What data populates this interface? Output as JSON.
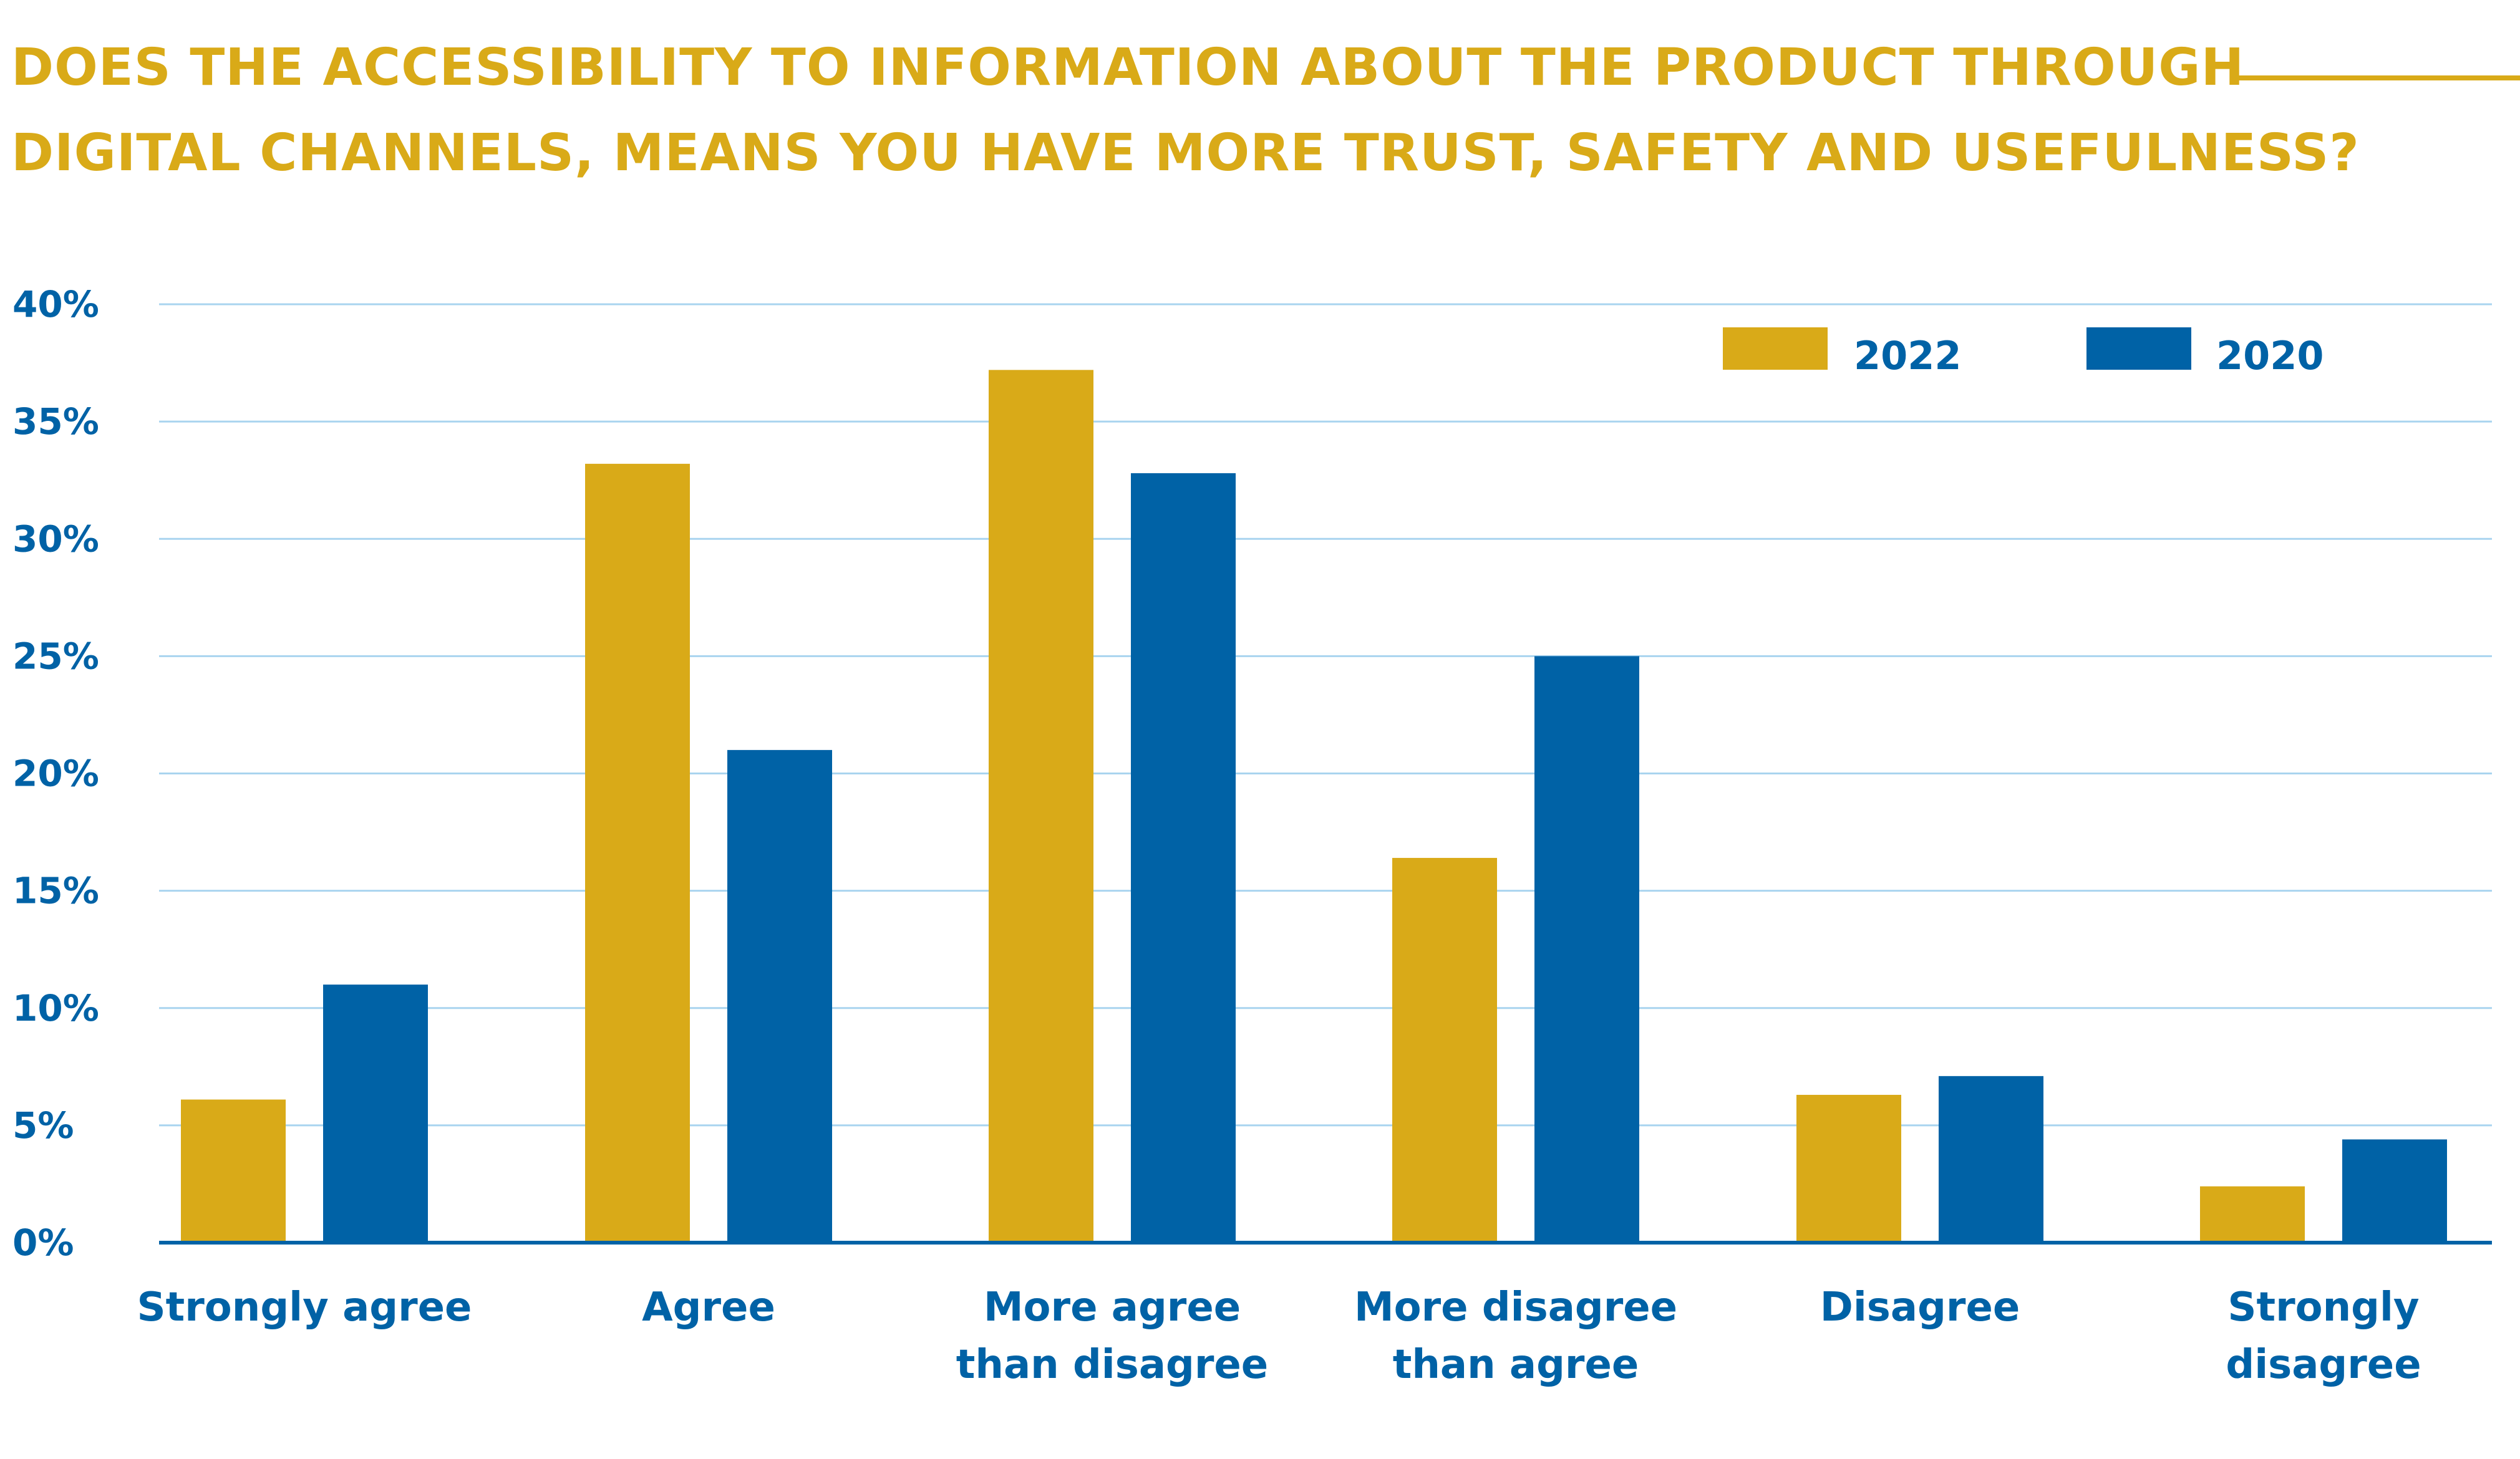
{
  "title": {
    "line1": "DOES THE ACCESSIBILITY TO INFORMATION ABOUT THE PRODUCT THROUGH",
    "line2": "DIGITAL CHANNELS, MEANS YOU HAVE MORE TRUST, SAFETY AND USEFULNESS?"
  },
  "colors": {
    "title": "#d9aa18",
    "series_2022": "#d9aa18",
    "series_2020": "#0062a6",
    "grid": "#a9d4ef",
    "axis": "#0062a6"
  },
  "chart_data": {
    "type": "bar",
    "title": "DOES THE ACCESSIBILITY TO INFORMATION ABOUT THE PRODUCT THROUGH DIGITAL CHANNELS, MEANS YOU HAVE MORE TRUST, SAFETY AND USEFULNESS?",
    "xlabel": "",
    "ylabel": "",
    "categories": [
      [
        "Strongly agree"
      ],
      [
        "Agree"
      ],
      [
        "More agree",
        "than disagree"
      ],
      [
        "More disagree",
        "than agree"
      ],
      [
        "Disagree"
      ],
      [
        "Strongly",
        "disagree"
      ]
    ],
    "series": [
      {
        "name": "2022",
        "color": "#d9aa18",
        "values": [
          6.1,
          33.2,
          37.2,
          16.4,
          6.3,
          2.4
        ]
      },
      {
        "name": "2020",
        "color": "#0062a6",
        "values": [
          11.0,
          21.0,
          32.8,
          25.0,
          7.1,
          4.4
        ]
      }
    ],
    "ylim": [
      0,
      40
    ],
    "yticks": [
      0,
      5,
      10,
      15,
      20,
      25,
      30,
      35,
      40
    ],
    "ytick_labels": [
      "0%",
      "5%",
      "10%",
      "15%",
      "20%",
      "25%",
      "30%",
      "35%",
      "40%"
    ],
    "grid": true,
    "legend": {
      "placement": "top-right",
      "entries": [
        "2022",
        "2020"
      ]
    }
  }
}
